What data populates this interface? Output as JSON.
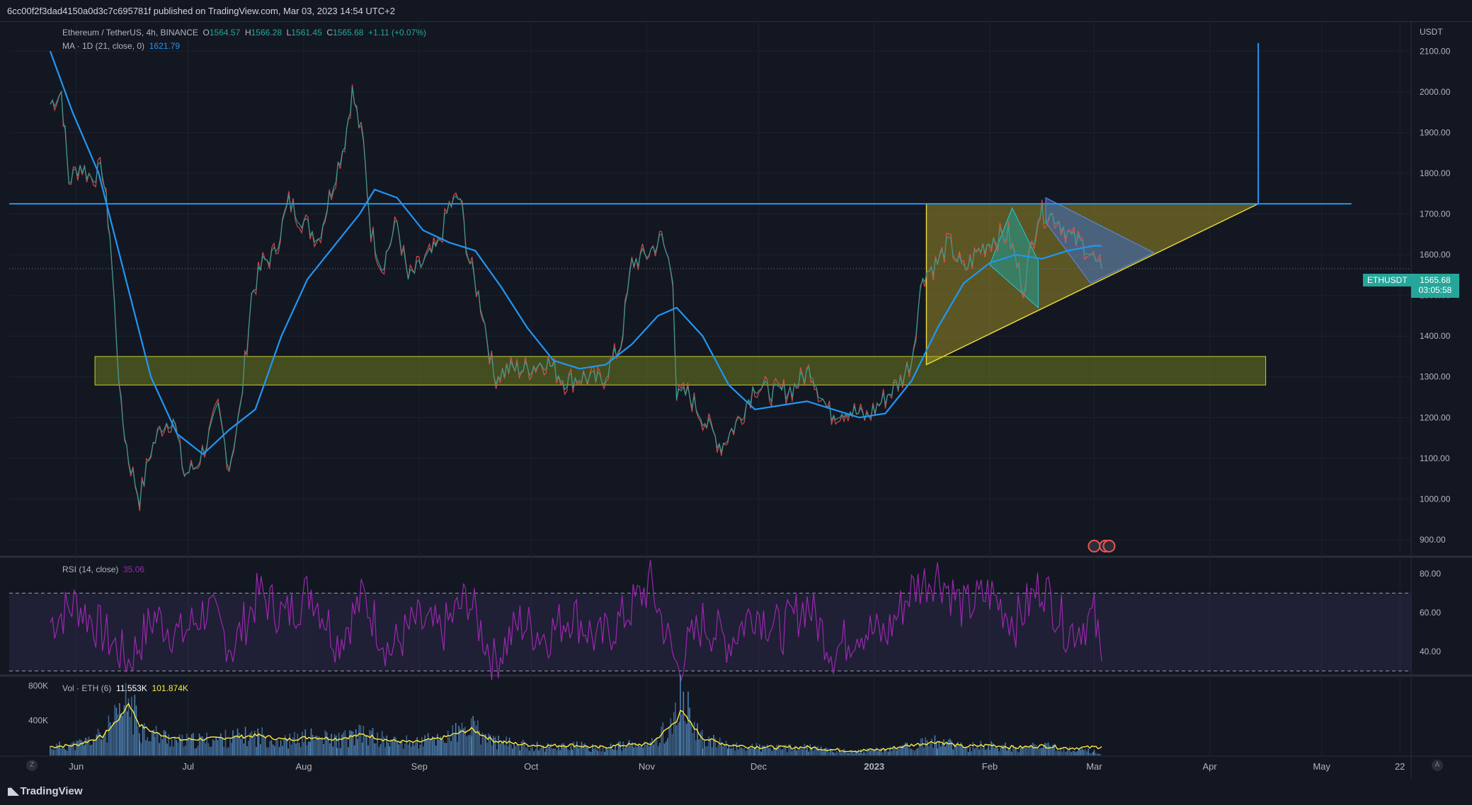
{
  "header": {
    "publish_line": "6cc00f2f3dad4150a0d3c7c695781f published on TradingView.com, Mar 03, 2023 14:54 UTC+2"
  },
  "legend": {
    "symbol": "Ethereum / TetherUS, 4h, BINANCE",
    "open_label": "O",
    "open": "1564.57",
    "high_label": "H",
    "high": "1566.28",
    "low_label": "L",
    "low": "1561.45",
    "close_label": "C",
    "close": "1565.68",
    "change": "+1.11 (+0.07%)",
    "ma_label": "MA · 1D (21, close, 0)",
    "ma_value": "1621.79",
    "rsi_label": "RSI (14, close)",
    "rsi_value": "35.06",
    "vol_label": "Vol · ETH (6)",
    "vol_value": "11.553K",
    "vol_ma_value": "101.874K"
  },
  "price_axis": {
    "currency": "USDT",
    "symbol_badge": "ETHUSDT",
    "last_price": "1565.68",
    "countdown": "03:05:58"
  },
  "footer": {
    "brand": "TradingView",
    "left_button": "Z",
    "right_button": "A"
  },
  "colors": {
    "background": "#131722",
    "grid": "#1e222d",
    "up": "#26a69a",
    "down": "#ef5350",
    "ma": "#2196f3",
    "resistance_line": "#2196f3",
    "zone_fill": "#6b7a1e",
    "zone_border": "#c8d22a",
    "triangle_yellow": "#b5a428",
    "triangle_teal": "#1e9e96",
    "triangle_blue": "#3f6ab8",
    "rsi": "#9c27b0",
    "volume_ma": "#ffeb3b"
  },
  "chart_data": [
    {
      "type": "line",
      "title": "Ethereum / TetherUS, 4h, BINANCE",
      "y_axis": {
        "ticks": [
          900,
          1000,
          1100,
          1200,
          1300,
          1400,
          1500,
          1600,
          1700,
          1800,
          1900,
          2000,
          2100
        ],
        "tick_labels": [
          "900.00",
          "1000.00",
          "1100.00",
          "1200.00",
          "1300.00",
          "1400.00",
          "1500.00",
          "1600.00",
          "1700.00",
          "1800.00",
          "1900.00",
          "2000.00",
          "2100.00"
        ],
        "ylim": [
          860,
          2170
        ]
      },
      "x_axis": {
        "tick_labels": [
          "Jun",
          "Jul",
          "Aug",
          "Sep",
          "Oct",
          "Nov",
          "Dec",
          "2023",
          "Feb",
          "Mar",
          "Apr",
          "May",
          "22"
        ]
      },
      "grid": true,
      "price_path": {
        "name": "ETHUSDT",
        "x": [
          "2022-05-25",
          "2022-05-28",
          "2022-05-30",
          "2022-06-02",
          "2022-06-05",
          "2022-06-08",
          "2022-06-10",
          "2022-06-13",
          "2022-06-15",
          "2022-06-18",
          "2022-06-21",
          "2022-06-24",
          "2022-06-27",
          "2022-06-30",
          "2022-07-03",
          "2022-07-06",
          "2022-07-09",
          "2022-07-12",
          "2022-07-15",
          "2022-07-18",
          "2022-07-21",
          "2022-07-24",
          "2022-07-28",
          "2022-08-01",
          "2022-08-05",
          "2022-08-09",
          "2022-08-12",
          "2022-08-14",
          "2022-08-17",
          "2022-08-19",
          "2022-08-22",
          "2022-08-26",
          "2022-08-29",
          "2022-09-02",
          "2022-09-06",
          "2022-09-09",
          "2022-09-12",
          "2022-09-14",
          "2022-09-18",
          "2022-09-21",
          "2022-09-25",
          "2022-09-30",
          "2022-10-05",
          "2022-10-10",
          "2022-10-15",
          "2022-10-20",
          "2022-10-25",
          "2022-10-28",
          "2022-11-01",
          "2022-11-05",
          "2022-11-08",
          "2022-11-09",
          "2022-11-12",
          "2022-11-16",
          "2022-11-21",
          "2022-11-26",
          "2022-11-30",
          "2022-12-05",
          "2022-12-10",
          "2022-12-15",
          "2022-12-17",
          "2022-12-20",
          "2022-12-25",
          "2022-12-30",
          "2023-01-04",
          "2023-01-08",
          "2023-01-11",
          "2023-01-14",
          "2023-01-18",
          "2023-01-21",
          "2023-01-25",
          "2023-01-29",
          "2023-02-02",
          "2023-02-06",
          "2023-02-10",
          "2023-02-14",
          "2023-02-16",
          "2023-02-19",
          "2023-02-23",
          "2023-02-27",
          "2023-03-02",
          "2023-03-03"
        ],
        "y": [
          1970,
          2000,
          1780,
          1820,
          1790,
          1810,
          1650,
          1220,
          1100,
          1000,
          1120,
          1180,
          1200,
          1060,
          1080,
          1140,
          1220,
          1080,
          1220,
          1500,
          1580,
          1600,
          1730,
          1680,
          1640,
          1780,
          1880,
          2000,
          1870,
          1660,
          1570,
          1680,
          1540,
          1580,
          1620,
          1720,
          1740,
          1600,
          1460,
          1300,
          1320,
          1320,
          1340,
          1290,
          1300,
          1290,
          1380,
          1580,
          1600,
          1640,
          1550,
          1250,
          1260,
          1200,
          1130,
          1200,
          1280,
          1260,
          1270,
          1320,
          1270,
          1210,
          1220,
          1200,
          1250,
          1290,
          1340,
          1550,
          1580,
          1630,
          1560,
          1610,
          1640,
          1650,
          1520,
          1700,
          1700,
          1690,
          1640,
          1620,
          1570,
          1565.68
        ]
      },
      "moving_average": {
        "name": "MA · 1D (21, close, 0)",
        "x": [
          "2022-05-25",
          "2022-05-31",
          "2022-06-07",
          "2022-06-14",
          "2022-06-21",
          "2022-06-28",
          "2022-07-05",
          "2022-07-12",
          "2022-07-19",
          "2022-07-26",
          "2022-08-02",
          "2022-08-09",
          "2022-08-16",
          "2022-08-20",
          "2022-08-26",
          "2022-09-02",
          "2022-09-09",
          "2022-09-16",
          "2022-09-23",
          "2022-09-30",
          "2022-10-07",
          "2022-10-14",
          "2022-10-21",
          "2022-10-28",
          "2022-11-04",
          "2022-11-09",
          "2022-11-16",
          "2022-11-23",
          "2022-11-30",
          "2022-12-07",
          "2022-12-14",
          "2022-12-21",
          "2022-12-28",
          "2023-01-04",
          "2023-01-11",
          "2023-01-18",
          "2023-01-25",
          "2023-02-01",
          "2023-02-08",
          "2023-02-15",
          "2023-02-22",
          "2023-03-01",
          "2023-03-03"
        ],
        "y": [
          2100,
          1950,
          1800,
          1550,
          1300,
          1160,
          1110,
          1170,
          1220,
          1400,
          1540,
          1620,
          1700,
          1760,
          1740,
          1660,
          1630,
          1610,
          1520,
          1420,
          1340,
          1320,
          1330,
          1380,
          1450,
          1470,
          1400,
          1280,
          1220,
          1230,
          1240,
          1220,
          1200,
          1210,
          1290,
          1420,
          1530,
          1580,
          1600,
          1590,
          1610,
          1622,
          1621.79
        ]
      }
    },
    {
      "type": "line",
      "title": "RSI (14, close)",
      "y_axis": {
        "ticks": [
          40,
          60,
          80
        ],
        "tick_labels": [
          "40.00",
          "60.00",
          "80.00"
        ],
        "ylim": [
          28,
          88
        ]
      },
      "overbought": 70,
      "oversold": 30,
      "series": [
        {
          "name": "RSI",
          "x": [
            "2022-05-25",
            "2022-06-01",
            "2022-06-08",
            "2022-06-15",
            "2022-06-22",
            "2022-06-29",
            "2022-07-06",
            "2022-07-13",
            "2022-07-20",
            "2022-07-27",
            "2022-08-03",
            "2022-08-10",
            "2022-08-17",
            "2022-08-24",
            "2022-08-31",
            "2022-09-07",
            "2022-09-14",
            "2022-09-21",
            "2022-09-28",
            "2022-10-05",
            "2022-10-12",
            "2022-10-19",
            "2022-10-26",
            "2022-11-02",
            "2022-11-09",
            "2022-11-16",
            "2022-11-23",
            "2022-11-30",
            "2022-12-07",
            "2022-12-14",
            "2022-12-21",
            "2022-12-28",
            "2023-01-04",
            "2023-01-11",
            "2023-01-18",
            "2023-01-25",
            "2023-02-01",
            "2023-02-08",
            "2023-02-15",
            "2023-02-22",
            "2023-03-01",
            "2023-03-03"
          ],
          "values": [
            55,
            65,
            50,
            35,
            58,
            48,
            62,
            42,
            70,
            58,
            72,
            45,
            68,
            40,
            55,
            50,
            68,
            35,
            55,
            48,
            60,
            45,
            58,
            75,
            32,
            55,
            45,
            62,
            50,
            65,
            40,
            52,
            48,
            72,
            80,
            62,
            70,
            55,
            75,
            50,
            58,
            35.06
          ]
        }
      ]
    },
    {
      "type": "bar",
      "title": "Vol · ETH (6)",
      "y_axis": {
        "ticks": [
          400000,
          800000
        ],
        "tick_labels": [
          "400K",
          "800K"
        ],
        "ylim": [
          0,
          900000
        ]
      },
      "series": [
        {
          "name": "Volume",
          "x": [
            "2022-05-25",
            "2022-06-01",
            "2022-06-08",
            "2022-06-13",
            "2022-06-15",
            "2022-06-18",
            "2022-06-22",
            "2022-06-29",
            "2022-07-06",
            "2022-07-13",
            "2022-07-20",
            "2022-07-27",
            "2022-08-03",
            "2022-08-10",
            "2022-08-17",
            "2022-08-24",
            "2022-08-31",
            "2022-09-07",
            "2022-09-15",
            "2022-09-21",
            "2022-09-28",
            "2022-10-05",
            "2022-10-12",
            "2022-10-19",
            "2022-10-26",
            "2022-11-02",
            "2022-11-09",
            "2022-11-10",
            "2022-11-16",
            "2022-11-23",
            "2022-11-30",
            "2022-12-07",
            "2022-12-14",
            "2022-12-21",
            "2022-12-28",
            "2023-01-04",
            "2023-01-11",
            "2023-01-18",
            "2023-01-25",
            "2023-02-01",
            "2023-02-08",
            "2023-02-15",
            "2023-02-22",
            "2023-03-01",
            "2023-03-03"
          ],
          "values": [
            120000,
            150000,
            280000,
            560000,
            780000,
            400000,
            300000,
            200000,
            220000,
            250000,
            280000,
            200000,
            260000,
            220000,
            300000,
            200000,
            180000,
            250000,
            380000,
            200000,
            150000,
            120000,
            140000,
            100000,
            140000,
            150000,
            520000,
            780000,
            230000,
            130000,
            120000,
            100000,
            110000,
            70000,
            60000,
            80000,
            140000,
            200000,
            110000,
            150000,
            100000,
            130000,
            90000,
            60000,
            11553
          ]
        },
        {
          "name": "Volume MA",
          "x": [
            "2022-05-25",
            "2022-06-01",
            "2022-06-08",
            "2022-06-13",
            "2022-06-15",
            "2022-06-18",
            "2022-06-22",
            "2022-06-29",
            "2022-07-06",
            "2022-07-13",
            "2022-07-20",
            "2022-07-27",
            "2022-08-03",
            "2022-08-10",
            "2022-08-17",
            "2022-08-24",
            "2022-08-31",
            "2022-09-07",
            "2022-09-15",
            "2022-09-21",
            "2022-09-28",
            "2022-10-05",
            "2022-10-12",
            "2022-10-19",
            "2022-10-26",
            "2022-11-02",
            "2022-11-09",
            "2022-11-10",
            "2022-11-16",
            "2022-11-23",
            "2022-11-30",
            "2022-12-07",
            "2022-12-14",
            "2022-12-21",
            "2022-12-28",
            "2023-01-04",
            "2023-01-11",
            "2023-01-18",
            "2023-01-25",
            "2023-02-01",
            "2023-02-08",
            "2023-02-15",
            "2023-02-22",
            "2023-03-01",
            "2023-03-03"
          ],
          "values": [
            100000,
            120000,
            220000,
            450000,
            600000,
            350000,
            260000,
            180000,
            190000,
            210000,
            230000,
            180000,
            210000,
            190000,
            240000,
            170000,
            150000,
            200000,
            300000,
            170000,
            130000,
            110000,
            120000,
            90000,
            120000,
            130000,
            400000,
            520000,
            200000,
            120000,
            100000,
            90000,
            95000,
            65000,
            55000,
            70000,
            120000,
            160000,
            100000,
            120000,
            90000,
            110000,
            85000,
            95000,
            101874
          ]
        }
      ]
    }
  ]
}
